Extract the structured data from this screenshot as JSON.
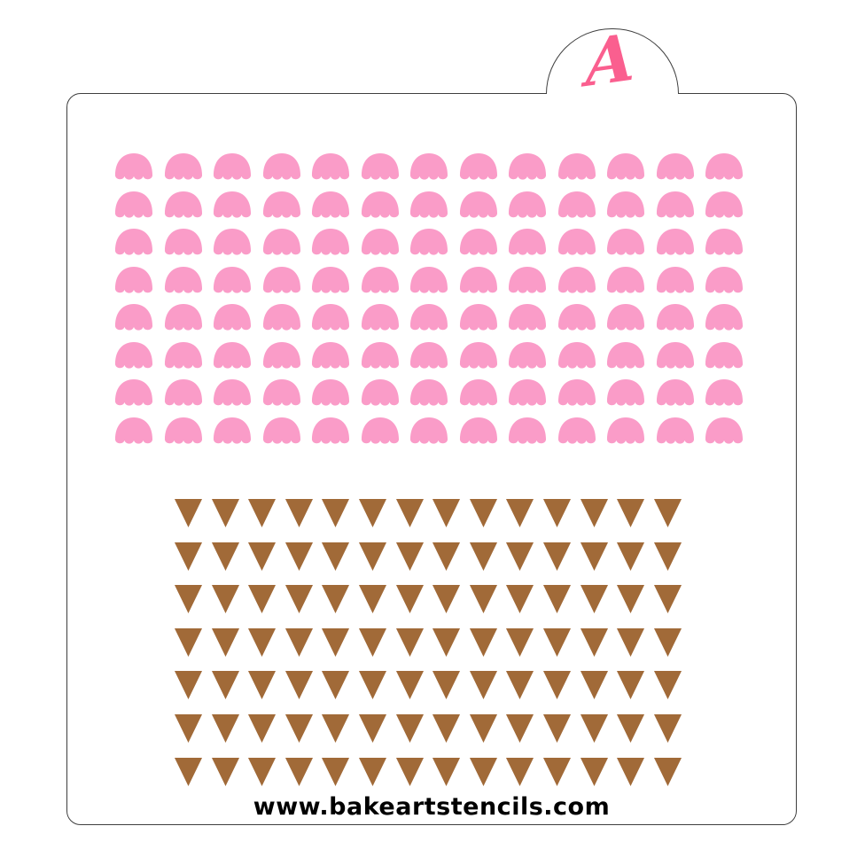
{
  "page": {
    "background": "#ffffff"
  },
  "stencil": {
    "border_color": "#3e3e3e",
    "fill": "#ffffff",
    "tab": {
      "logo_letter": "A",
      "logo_color": "#fa5f8f"
    },
    "footer": {
      "website": "www.bakeartstencils.com",
      "color": "#000000"
    },
    "patterns": [
      {
        "name": "ice-cream-scoops",
        "shape": "scoop",
        "rows": 8,
        "cols": 13,
        "color": "#fa9cc8"
      },
      {
        "name": "ice-cream-cones",
        "shape": "cone",
        "rows": 7,
        "cols": 14,
        "color": "#a16a38"
      }
    ]
  }
}
